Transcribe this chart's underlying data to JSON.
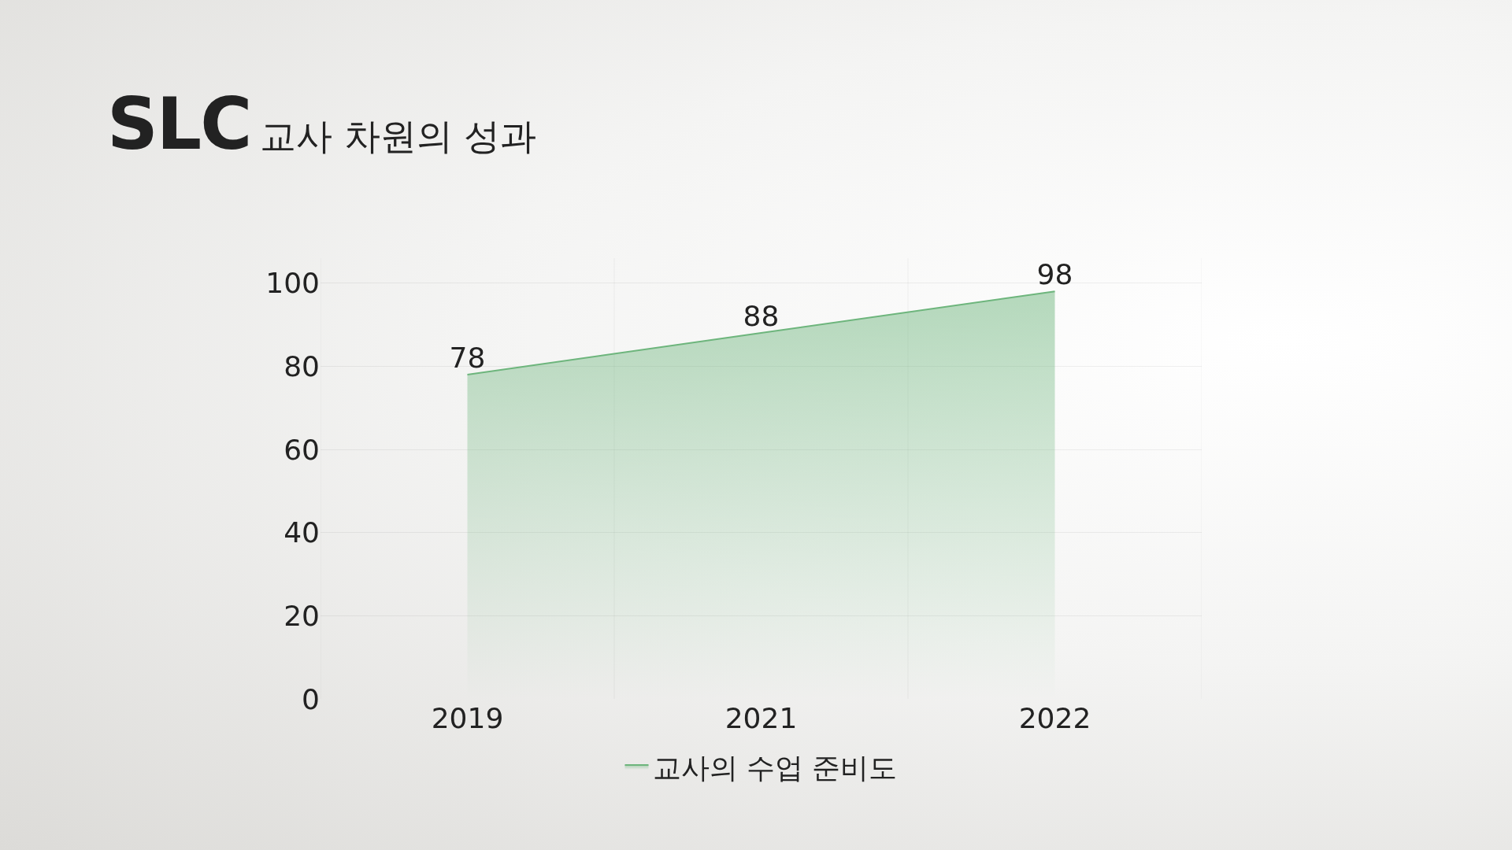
{
  "chart_data": {
    "type": "area",
    "title": "SLC",
    "subtitle": "교사 차원의 성과",
    "categories": [
      "2019",
      "2021",
      "2022"
    ],
    "series": [
      {
        "name": "교사의 수업 준비도",
        "color": "#6db57c",
        "values": [
          78,
          88,
          98
        ]
      }
    ],
    "ylim": [
      0,
      106
    ],
    "yticks": [
      0,
      20,
      40,
      60,
      80,
      100
    ],
    "grid": true,
    "data_labels": true,
    "legend": "bottom"
  }
}
